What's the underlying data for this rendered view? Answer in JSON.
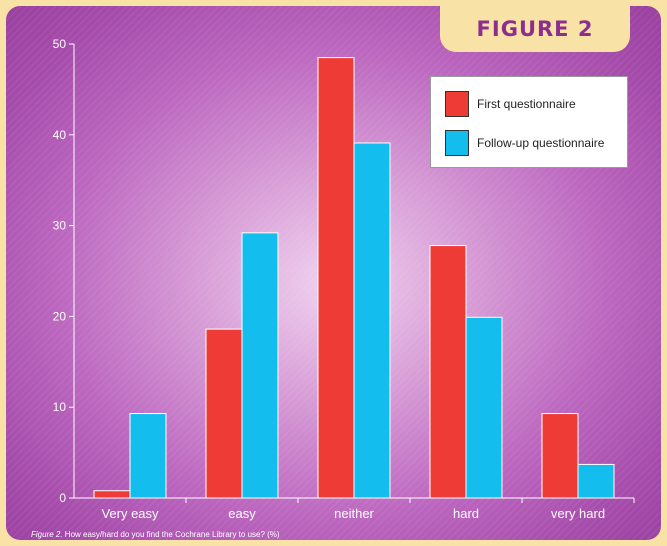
{
  "figure_label": "FIGURE 2",
  "caption_prefix": "Figure 2.",
  "caption_text": " How easy/hard do you find the Cochrane Library to use? (%)",
  "chart_data": {
    "type": "bar",
    "categories": [
      "Very easy",
      "easy",
      "neither",
      "hard",
      "very hard"
    ],
    "series": [
      {
        "name": "First questionnaire",
        "values": [
          0.8,
          18.6,
          48.5,
          27.8,
          9.3
        ],
        "color": "#ef3b35"
      },
      {
        "name": "Follow-up questionnaire",
        "values": [
          9.3,
          29.2,
          39.1,
          19.9,
          3.7
        ],
        "color": "#13bdee"
      }
    ],
    "y_ticks": [
      0,
      10,
      20,
      30,
      40,
      50
    ],
    "ylim": [
      0,
      50
    ],
    "legend_position": "top-right",
    "grid": false
  }
}
